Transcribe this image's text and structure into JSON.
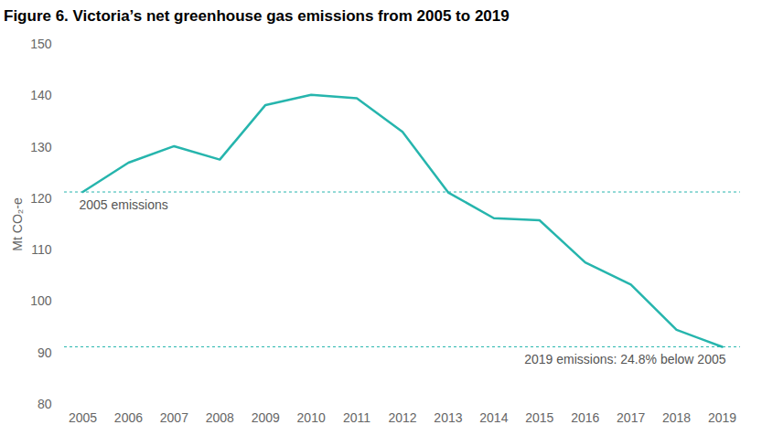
{
  "chart_data": {
    "type": "line",
    "title": "Figure 6. Victoria’s net greenhouse gas emissions from 2005 to 2019",
    "y_label": "Mt CO₂-e",
    "x": [
      2005,
      2006,
      2007,
      2008,
      2009,
      2010,
      2011,
      2012,
      2013,
      2014,
      2015,
      2016,
      2017,
      2018,
      2019
    ],
    "values": [
      121.3,
      127.0,
      130.2,
      127.6,
      138.2,
      140.2,
      139.5,
      133.0,
      121.2,
      116.2,
      115.8,
      107.6,
      103.3,
      94.5,
      91.2
    ],
    "color": "#26b5ad",
    "xlim": [
      2005,
      2019
    ],
    "xticks": [
      2005,
      2006,
      2007,
      2008,
      2009,
      2010,
      2011,
      2012,
      2013,
      2014,
      2015,
      2016,
      2017,
      2018,
      2019
    ],
    "ylim": [
      80,
      150
    ],
    "yticks": [
      80,
      90,
      100,
      110,
      120,
      130,
      140,
      150
    ],
    "grid": false,
    "annotations": [
      {
        "text": "2005 emissions",
        "y": 121.3
      },
      {
        "text": "2019 emissions: 24.8% below 2005",
        "y": 91.2
      }
    ]
  }
}
